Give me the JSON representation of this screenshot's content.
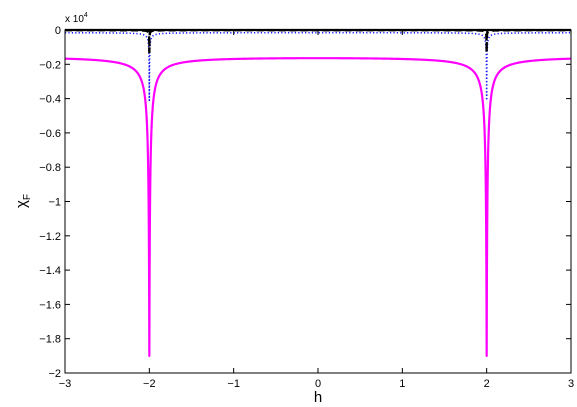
{
  "chart_data": {
    "type": "line",
    "xlabel": "h",
    "ylabel": "χ",
    "ylabel_subscript": "F",
    "y_multiplier": {
      "base": "x 10",
      "exponent": "4",
      "value": 10000
    },
    "xlim": [
      -3,
      3
    ],
    "ylim": [
      -2.0,
      0.0
    ],
    "x_ticks": [
      -3,
      -2,
      -1,
      0,
      1,
      2,
      3
    ],
    "x_tick_labels": [
      "−3",
      "−2",
      "−1",
      "0",
      "1",
      "2",
      "3"
    ],
    "y_ticks": [
      0,
      -0.2,
      -0.4,
      -0.6,
      -0.8,
      -1.0,
      -1.2,
      -1.4,
      -1.6,
      -1.8,
      -2.0
    ],
    "y_tick_labels": [
      "0",
      "−0.2",
      "−0.4",
      "−0.6",
      "−0.8",
      "−1",
      "−1.2",
      "−1.4",
      "−1.6",
      "−1.8",
      "−2"
    ],
    "grid": false,
    "series": [
      {
        "style": "solid",
        "color": "#ff00ff",
        "curve": {
          "base": -0.15,
          "peak": -1.9,
          "width": 0.0082,
          "singularities": [
            -2,
            2
          ]
        }
      },
      {
        "style": "dotted",
        "color": "#1a1aff",
        "curve": {
          "base": -0.015,
          "peak": -0.41,
          "width": 0.0022,
          "singularities": [
            -2,
            2
          ]
        }
      },
      {
        "style": "dashed",
        "color": "#000000",
        "curve": {
          "base": -0.001,
          "peak": -0.13,
          "width": 0.0012,
          "singularities": [
            -2,
            2
          ]
        }
      },
      {
        "style": "solid",
        "color": "#000000",
        "curve": {
          "base": 0.0,
          "peak": 0.0,
          "width": 0.001,
          "singularities": [
            -2,
            2
          ]
        }
      }
    ]
  }
}
